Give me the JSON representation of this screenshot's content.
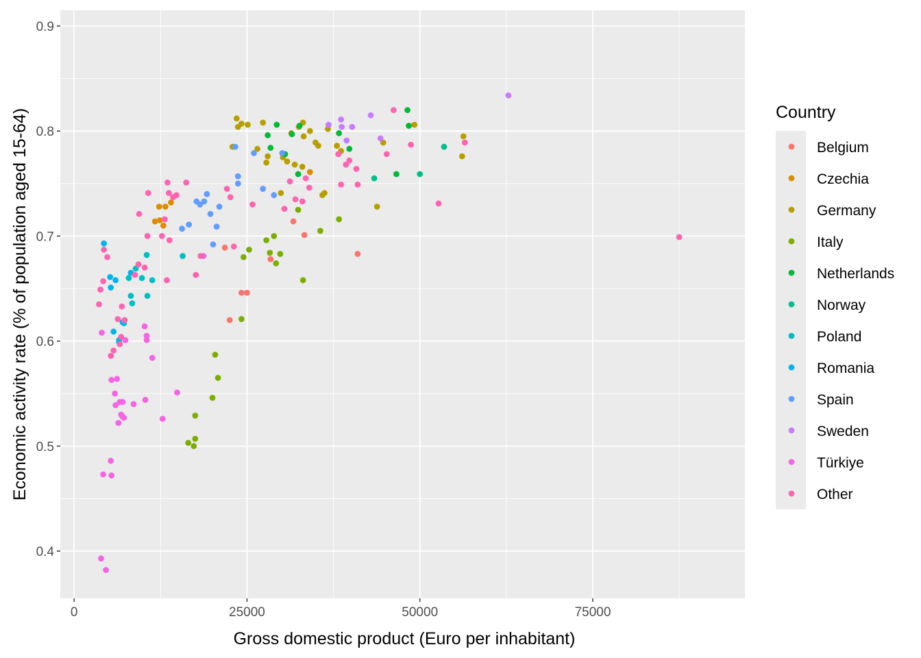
{
  "chart_data": {
    "type": "scatter",
    "title": "",
    "xlabel": "Gross domestic product (Euro per inhabitant)",
    "ylabel": "Economic activity rate (% of population aged 15-64)",
    "xlim": [
      -2000,
      97000
    ],
    "ylim": [
      0.355,
      0.915
    ],
    "x_ticks": [
      0,
      25000,
      50000,
      75000
    ],
    "x_tick_labels": [
      "0",
      "25000",
      "50000",
      "75000"
    ],
    "y_ticks": [
      0.4,
      0.5,
      0.6,
      0.7,
      0.8,
      0.9
    ],
    "y_tick_labels": [
      "0.4",
      "0.5",
      "0.6",
      "0.7",
      "0.8",
      "0.9"
    ],
    "grid": true,
    "panel_background": "#ebebeb",
    "legend": {
      "title": "Country",
      "position": "right"
    },
    "series": [
      {
        "name": "Belgium",
        "color": "#F8766D",
        "points": [
          [
            21800,
            0.689
          ],
          [
            22500,
            0.62
          ],
          [
            24200,
            0.646
          ],
          [
            25000,
            0.646
          ],
          [
            28400,
            0.678
          ],
          [
            31700,
            0.714
          ],
          [
            33300,
            0.701
          ],
          [
            41000,
            0.683
          ]
        ]
      },
      {
        "name": "Czechia",
        "color": "#DE8C00",
        "points": [
          [
            11700,
            0.714
          ],
          [
            12300,
            0.728
          ],
          [
            12400,
            0.715
          ],
          [
            12900,
            0.71
          ],
          [
            13200,
            0.728
          ],
          [
            14000,
            0.732
          ],
          [
            34100,
            0.761
          ]
        ]
      },
      {
        "name": "Germany",
        "color": "#B79F00",
        "points": [
          [
            22900,
            0.785
          ],
          [
            23500,
            0.812
          ],
          [
            23700,
            0.804
          ],
          [
            24200,
            0.807
          ],
          [
            25100,
            0.806
          ],
          [
            26500,
            0.783
          ],
          [
            27300,
            0.808
          ],
          [
            27800,
            0.77
          ],
          [
            28000,
            0.776
          ],
          [
            29900,
            0.741
          ],
          [
            30200,
            0.775
          ],
          [
            30800,
            0.771
          ],
          [
            31400,
            0.798
          ],
          [
            31900,
            0.768
          ],
          [
            32500,
            0.804
          ],
          [
            33000,
            0.766
          ],
          [
            33100,
            0.808
          ],
          [
            33200,
            0.795
          ],
          [
            34100,
            0.8
          ],
          [
            34900,
            0.789
          ],
          [
            35300,
            0.786
          ],
          [
            35900,
            0.739
          ],
          [
            36200,
            0.741
          ],
          [
            36700,
            0.802
          ],
          [
            38000,
            0.786
          ],
          [
            38600,
            0.781
          ],
          [
            43800,
            0.728
          ],
          [
            44700,
            0.789
          ],
          [
            49200,
            0.806
          ],
          [
            56100,
            0.776
          ],
          [
            56300,
            0.795
          ]
        ]
      },
      {
        "name": "Italy",
        "color": "#7CAE00",
        "points": [
          [
            16500,
            0.503
          ],
          [
            17300,
            0.5
          ],
          [
            17500,
            0.507
          ],
          [
            17500,
            0.529
          ],
          [
            20000,
            0.546
          ],
          [
            20400,
            0.587
          ],
          [
            20800,
            0.565
          ],
          [
            24200,
            0.621
          ],
          [
            24500,
            0.68
          ],
          [
            25300,
            0.687
          ],
          [
            27800,
            0.696
          ],
          [
            28300,
            0.684
          ],
          [
            28900,
            0.7
          ],
          [
            29200,
            0.674
          ],
          [
            29800,
            0.683
          ],
          [
            32400,
            0.725
          ],
          [
            33100,
            0.658
          ],
          [
            35600,
            0.705
          ],
          [
            38300,
            0.716
          ]
        ]
      },
      {
        "name": "Netherlands",
        "color": "#00BA38",
        "points": [
          [
            28000,
            0.796
          ],
          [
            28400,
            0.784
          ],
          [
            29300,
            0.806
          ],
          [
            30500,
            0.778
          ],
          [
            31500,
            0.797
          ],
          [
            32400,
            0.759
          ],
          [
            32600,
            0.805
          ],
          [
            38300,
            0.798
          ],
          [
            39800,
            0.783
          ],
          [
            46600,
            0.759
          ],
          [
            48200,
            0.82
          ],
          [
            48400,
            0.805
          ]
        ]
      },
      {
        "name": "Norway",
        "color": "#00C08B",
        "points": [
          [
            43400,
            0.755
          ],
          [
            50000,
            0.759
          ],
          [
            53500,
            0.785
          ]
        ]
      },
      {
        "name": "Poland",
        "color": "#00BFC4",
        "points": [
          [
            6500,
            0.601
          ],
          [
            7200,
            0.617
          ],
          [
            7900,
            0.66
          ],
          [
            8200,
            0.643
          ],
          [
            8400,
            0.636
          ],
          [
            8900,
            0.669
          ],
          [
            9800,
            0.66
          ],
          [
            10500,
            0.682
          ],
          [
            10600,
            0.643
          ],
          [
            11300,
            0.658
          ],
          [
            15700,
            0.681
          ]
        ]
      },
      {
        "name": "Romania",
        "color": "#00B4F0",
        "points": [
          [
            4300,
            0.693
          ],
          [
            5200,
            0.661
          ],
          [
            5300,
            0.651
          ],
          [
            5700,
            0.609
          ],
          [
            6000,
            0.658
          ],
          [
            6500,
            0.599
          ],
          [
            7000,
            0.618
          ],
          [
            8200,
            0.665
          ]
        ]
      },
      {
        "name": "Spain",
        "color": "#619CFF",
        "points": [
          [
            15600,
            0.707
          ],
          [
            16600,
            0.711
          ],
          [
            17700,
            0.733
          ],
          [
            18200,
            0.73
          ],
          [
            18800,
            0.733
          ],
          [
            19200,
            0.74
          ],
          [
            19700,
            0.721
          ],
          [
            20100,
            0.692
          ],
          [
            20600,
            0.709
          ],
          [
            21000,
            0.728
          ],
          [
            23300,
            0.785
          ],
          [
            23700,
            0.757
          ],
          [
            23700,
            0.75
          ],
          [
            26000,
            0.779
          ],
          [
            27300,
            0.745
          ],
          [
            28900,
            0.739
          ],
          [
            30100,
            0.779
          ]
        ]
      },
      {
        "name": "Sweden",
        "color": "#C77CFF",
        "points": [
          [
            36800,
            0.806
          ],
          [
            38600,
            0.811
          ],
          [
            38700,
            0.804
          ],
          [
            39400,
            0.791
          ],
          [
            40200,
            0.804
          ],
          [
            42900,
            0.815
          ],
          [
            44300,
            0.793
          ],
          [
            62800,
            0.834
          ]
        ]
      },
      {
        "name": "Türkiye",
        "color": "#F564E3",
        "points": [
          [
            3900,
            0.393
          ],
          [
            4200,
            0.473
          ],
          [
            4600,
            0.382
          ],
          [
            5300,
            0.486
          ],
          [
            5400,
            0.472
          ],
          [
            5400,
            0.563
          ],
          [
            4000,
            0.608
          ],
          [
            5900,
            0.55
          ],
          [
            6000,
            0.539
          ],
          [
            6200,
            0.564
          ],
          [
            6400,
            0.522
          ],
          [
            6600,
            0.542
          ],
          [
            6800,
            0.53
          ],
          [
            7000,
            0.542
          ],
          [
            7000,
            0.528
          ],
          [
            7200,
            0.527
          ],
          [
            7400,
            0.601
          ],
          [
            8600,
            0.54
          ],
          [
            10200,
            0.614
          ],
          [
            10300,
            0.544
          ],
          [
            10500,
            0.605
          ],
          [
            10500,
            0.601
          ],
          [
            11300,
            0.584
          ],
          [
            12800,
            0.526
          ],
          [
            14900,
            0.551
          ],
          [
            18700,
            0.681
          ]
        ]
      },
      {
        "name": "Other",
        "color": "#FF64B0",
        "points": [
          [
            3600,
            0.635
          ],
          [
            3800,
            0.649
          ],
          [
            4200,
            0.657
          ],
          [
            4300,
            0.687
          ],
          [
            4800,
            0.68
          ],
          [
            5300,
            0.586
          ],
          [
            5700,
            0.591
          ],
          [
            6300,
            0.621
          ],
          [
            6600,
            0.597
          ],
          [
            6800,
            0.604
          ],
          [
            6900,
            0.633
          ],
          [
            7300,
            0.62
          ],
          [
            8800,
            0.663
          ],
          [
            9300,
            0.673
          ],
          [
            9400,
            0.721
          ],
          [
            10200,
            0.67
          ],
          [
            10600,
            0.7
          ],
          [
            10700,
            0.741
          ],
          [
            12700,
            0.7
          ],
          [
            13100,
            0.716
          ],
          [
            13400,
            0.658
          ],
          [
            13500,
            0.751
          ],
          [
            13700,
            0.741
          ],
          [
            13800,
            0.696
          ],
          [
            14300,
            0.737
          ],
          [
            14800,
            0.739
          ],
          [
            16200,
            0.751
          ],
          [
            17600,
            0.663
          ],
          [
            18300,
            0.681
          ],
          [
            22100,
            0.745
          ],
          [
            22600,
            0.737
          ],
          [
            23100,
            0.69
          ],
          [
            25800,
            0.73
          ],
          [
            30400,
            0.726
          ],
          [
            31200,
            0.752
          ],
          [
            32000,
            0.735
          ],
          [
            33000,
            0.733
          ],
          [
            33500,
            0.755
          ],
          [
            34000,
            0.746
          ],
          [
            38200,
            0.778
          ],
          [
            38600,
            0.749
          ],
          [
            39300,
            0.768
          ],
          [
            39800,
            0.772
          ],
          [
            40800,
            0.764
          ],
          [
            41000,
            0.749
          ],
          [
            45200,
            0.778
          ],
          [
            46200,
            0.82
          ],
          [
            48700,
            0.787
          ],
          [
            52700,
            0.731
          ],
          [
            56500,
            0.789
          ],
          [
            87500,
            0.699
          ]
        ]
      }
    ]
  }
}
